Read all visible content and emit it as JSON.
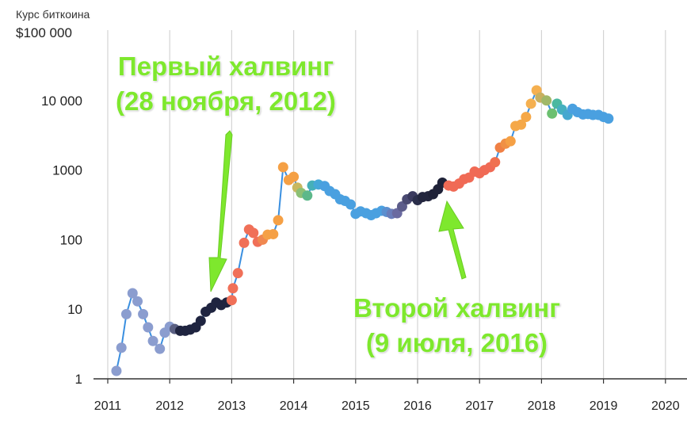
{
  "chart_data": {
    "type": "scatter",
    "ytitle": "Курс биткоина",
    "ytop_label": "$100 000",
    "yscale": "log",
    "yticks": [
      {
        "value": 1,
        "label": "1"
      },
      {
        "value": 10,
        "label": "10"
      },
      {
        "value": 100,
        "label": "100"
      },
      {
        "value": 1000,
        "label": "1000"
      },
      {
        "value": 10000,
        "label": "10 000"
      }
    ],
    "xticks": [
      "2011",
      "2012",
      "2013",
      "2014",
      "2015",
      "2016",
      "2017",
      "2018",
      "2019",
      "2020"
    ],
    "xlim": [
      2011,
      2020
    ],
    "ylim": [
      1,
      100000
    ],
    "grid": "vertical",
    "line_color": "#3a8fe0",
    "points": [
      {
        "x": 2011.14,
        "y": 1.3,
        "c": "#8b9dcf"
      },
      {
        "x": 2011.22,
        "y": 2.8,
        "c": "#8b9dcf"
      },
      {
        "x": 2011.3,
        "y": 8.5,
        "c": "#8b9dcf"
      },
      {
        "x": 2011.4,
        "y": 17,
        "c": "#8b9dcf"
      },
      {
        "x": 2011.48,
        "y": 13,
        "c": "#8b9dcf"
      },
      {
        "x": 2011.57,
        "y": 8.5,
        "c": "#8b9dcf"
      },
      {
        "x": 2011.65,
        "y": 5.5,
        "c": "#8b9dcf"
      },
      {
        "x": 2011.73,
        "y": 3.5,
        "c": "#8b9dcf"
      },
      {
        "x": 2011.84,
        "y": 2.7,
        "c": "#8b9dcf"
      },
      {
        "x": 2011.92,
        "y": 4.6,
        "c": "#8b9dcf"
      },
      {
        "x": 2012.0,
        "y": 5.6,
        "c": "#8b9dcf"
      },
      {
        "x": 2012.08,
        "y": 5.2,
        "c": "#5a5f82"
      },
      {
        "x": 2012.17,
        "y": 4.9,
        "c": "#1f2440"
      },
      {
        "x": 2012.25,
        "y": 4.9,
        "c": "#1f2440"
      },
      {
        "x": 2012.33,
        "y": 5.1,
        "c": "#1f2440"
      },
      {
        "x": 2012.42,
        "y": 5.5,
        "c": "#1f2440"
      },
      {
        "x": 2012.5,
        "y": 6.8,
        "c": "#1f2440"
      },
      {
        "x": 2012.58,
        "y": 9.2,
        "c": "#1f2440"
      },
      {
        "x": 2012.67,
        "y": 10.5,
        "c": "#1f2440"
      },
      {
        "x": 2012.75,
        "y": 12.5,
        "c": "#1f2440"
      },
      {
        "x": 2012.83,
        "y": 11.5,
        "c": "#1f2440"
      },
      {
        "x": 2012.92,
        "y": 12.5,
        "c": "#1f2440"
      },
      {
        "x": 2013.0,
        "y": 13.5,
        "c": "#f07058"
      },
      {
        "x": 2013.02,
        "y": 20,
        "c": "#f07058"
      },
      {
        "x": 2013.1,
        "y": 33,
        "c": "#f07058"
      },
      {
        "x": 2013.2,
        "y": 90,
        "c": "#f07058"
      },
      {
        "x": 2013.28,
        "y": 140,
        "c": "#f07058"
      },
      {
        "x": 2013.35,
        "y": 125,
        "c": "#f07058"
      },
      {
        "x": 2013.42,
        "y": 93,
        "c": "#f07058"
      },
      {
        "x": 2013.5,
        "y": 100,
        "c": "#f08850"
      },
      {
        "x": 2013.58,
        "y": 118,
        "c": "#f5a045"
      },
      {
        "x": 2013.67,
        "y": 120,
        "c": "#f5a045"
      },
      {
        "x": 2013.75,
        "y": 190,
        "c": "#f5a045"
      },
      {
        "x": 2013.83,
        "y": 1100,
        "c": "#f5a045"
      },
      {
        "x": 2013.92,
        "y": 720,
        "c": "#f5a045"
      },
      {
        "x": 2014.0,
        "y": 800,
        "c": "#f5a045"
      },
      {
        "x": 2014.06,
        "y": 560,
        "c": "#c8b860"
      },
      {
        "x": 2014.12,
        "y": 470,
        "c": "#8cc075"
      },
      {
        "x": 2014.22,
        "y": 430,
        "c": "#5db88a"
      },
      {
        "x": 2014.3,
        "y": 600,
        "c": "#45b0b8"
      },
      {
        "x": 2014.4,
        "y": 620,
        "c": "#45a8d8"
      },
      {
        "x": 2014.5,
        "y": 590,
        "c": "#4aa0e0"
      },
      {
        "x": 2014.58,
        "y": 500,
        "c": "#4aa0e0"
      },
      {
        "x": 2014.67,
        "y": 450,
        "c": "#4aa0e0"
      },
      {
        "x": 2014.75,
        "y": 380,
        "c": "#4aa0e0"
      },
      {
        "x": 2014.83,
        "y": 360,
        "c": "#4aa0e0"
      },
      {
        "x": 2014.92,
        "y": 320,
        "c": "#4aa0e0"
      },
      {
        "x": 2015.0,
        "y": 235,
        "c": "#4aa0e0"
      },
      {
        "x": 2015.08,
        "y": 255,
        "c": "#4aa0e0"
      },
      {
        "x": 2015.17,
        "y": 240,
        "c": "#4aa0e0"
      },
      {
        "x": 2015.25,
        "y": 225,
        "c": "#4aa0e0"
      },
      {
        "x": 2015.33,
        "y": 240,
        "c": "#4aa0e0"
      },
      {
        "x": 2015.42,
        "y": 260,
        "c": "#4aa0e0"
      },
      {
        "x": 2015.5,
        "y": 250,
        "c": "#5b8fcf"
      },
      {
        "x": 2015.58,
        "y": 235,
        "c": "#6a7dba"
      },
      {
        "x": 2015.67,
        "y": 240,
        "c": "#6a6aa0"
      },
      {
        "x": 2015.75,
        "y": 300,
        "c": "#5c5c8a"
      },
      {
        "x": 2015.83,
        "y": 380,
        "c": "#4a4a72"
      },
      {
        "x": 2015.92,
        "y": 420,
        "c": "#3a3a5e"
      },
      {
        "x": 2016.0,
        "y": 370,
        "c": "#2a2e4a"
      },
      {
        "x": 2016.08,
        "y": 410,
        "c": "#23263e"
      },
      {
        "x": 2016.17,
        "y": 420,
        "c": "#23263e"
      },
      {
        "x": 2016.25,
        "y": 450,
        "c": "#1f2238"
      },
      {
        "x": 2016.33,
        "y": 530,
        "c": "#1f2238"
      },
      {
        "x": 2016.4,
        "y": 660,
        "c": "#1f2238"
      },
      {
        "x": 2016.5,
        "y": 600,
        "c": "#f06a55"
      },
      {
        "x": 2016.58,
        "y": 580,
        "c": "#f06a55"
      },
      {
        "x": 2016.67,
        "y": 640,
        "c": "#f06a55"
      },
      {
        "x": 2016.75,
        "y": 740,
        "c": "#f06a55"
      },
      {
        "x": 2016.83,
        "y": 780,
        "c": "#f06a55"
      },
      {
        "x": 2016.92,
        "y": 950,
        "c": "#f06a55"
      },
      {
        "x": 2017.0,
        "y": 900,
        "c": "#f06a55"
      },
      {
        "x": 2017.08,
        "y": 1000,
        "c": "#f06a55"
      },
      {
        "x": 2017.17,
        "y": 1100,
        "c": "#f06a55"
      },
      {
        "x": 2017.25,
        "y": 1300,
        "c": "#f07050"
      },
      {
        "x": 2017.33,
        "y": 2100,
        "c": "#f08045"
      },
      {
        "x": 2017.42,
        "y": 2400,
        "c": "#f09045"
      },
      {
        "x": 2017.5,
        "y": 2600,
        "c": "#f5a045"
      },
      {
        "x": 2017.58,
        "y": 4300,
        "c": "#f5a848"
      },
      {
        "x": 2017.67,
        "y": 4500,
        "c": "#f5a848"
      },
      {
        "x": 2017.75,
        "y": 5800,
        "c": "#f5a848"
      },
      {
        "x": 2017.83,
        "y": 9000,
        "c": "#f5b050"
      },
      {
        "x": 2017.92,
        "y": 14000,
        "c": "#f5b050"
      },
      {
        "x": 2017.98,
        "y": 11000,
        "c": "#c8b060"
      },
      {
        "x": 2018.08,
        "y": 10000,
        "c": "#a0b868"
      },
      {
        "x": 2018.17,
        "y": 6500,
        "c": "#6cc070"
      },
      {
        "x": 2018.25,
        "y": 9000,
        "c": "#4ab8a0"
      },
      {
        "x": 2018.33,
        "y": 7400,
        "c": "#45b0c0"
      },
      {
        "x": 2018.42,
        "y": 6200,
        "c": "#45a8d0"
      },
      {
        "x": 2018.5,
        "y": 7600,
        "c": "#4aa0e0"
      },
      {
        "x": 2018.58,
        "y": 6800,
        "c": "#4aa0e0"
      },
      {
        "x": 2018.67,
        "y": 6300,
        "c": "#4aa0e0"
      },
      {
        "x": 2018.75,
        "y": 6400,
        "c": "#4aa0e0"
      },
      {
        "x": 2018.83,
        "y": 6200,
        "c": "#4aa0e0"
      },
      {
        "x": 2018.92,
        "y": 6200,
        "c": "#4aa0e0"
      },
      {
        "x": 2019.0,
        "y": 5800,
        "c": "#4aa0e0"
      },
      {
        "x": 2019.08,
        "y": 5500,
        "c": "#4aa0e0"
      }
    ],
    "annotations": [
      {
        "line1": "Первый халвинг",
        "line2": "(28 ноября, 2012)"
      },
      {
        "line1": "Второй халвинг",
        "line2": "(9 июля, 2016)"
      }
    ],
    "arrow_color": "#7ee82d"
  }
}
